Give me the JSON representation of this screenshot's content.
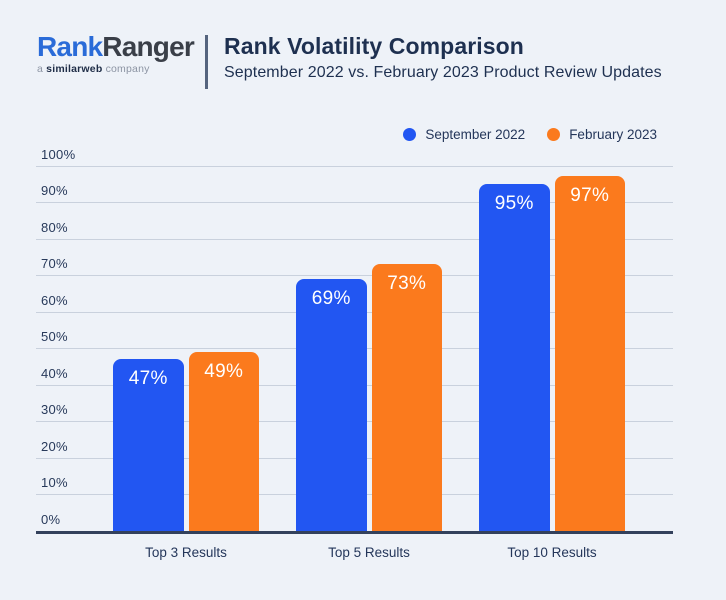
{
  "header": {
    "logo": {
      "part1": "Rank",
      "part2": "Ranger",
      "tagline_prefix": "a ",
      "tagline_brand": "similarweb",
      "tagline_suffix": " company"
    },
    "title": "Rank Volatility Comparison",
    "subtitle": "September 2022 vs. February 2023 Product Review Updates"
  },
  "colors": {
    "background": "#eef2f8",
    "blue": "#2256f2",
    "orange": "#fb7a1d",
    "gridline": "#c9d1dd",
    "baseline": "#33415c",
    "text_navy": "#1e3050"
  },
  "chart_data": {
    "type": "bar",
    "title": "Rank Volatility Comparison",
    "subtitle": "September 2022 vs. February 2023 Product Review Updates",
    "categories": [
      "Top 3 Results",
      "Top 5 Results",
      "Top 10 Results"
    ],
    "series": [
      {
        "name": "September 2022",
        "color": "#2256f2",
        "values": [
          47,
          69,
          95
        ]
      },
      {
        "name": "February 2023",
        "color": "#fb7a1d",
        "values": [
          49,
          73,
          97
        ]
      }
    ],
    "value_suffix": "%",
    "data_labels": "inside-top",
    "ylabel": "",
    "xlabel": "",
    "ylim": [
      0,
      100
    ],
    "ytick_step": 10,
    "ytick_suffix": "%",
    "grid": true,
    "legend_position": "top-right"
  }
}
